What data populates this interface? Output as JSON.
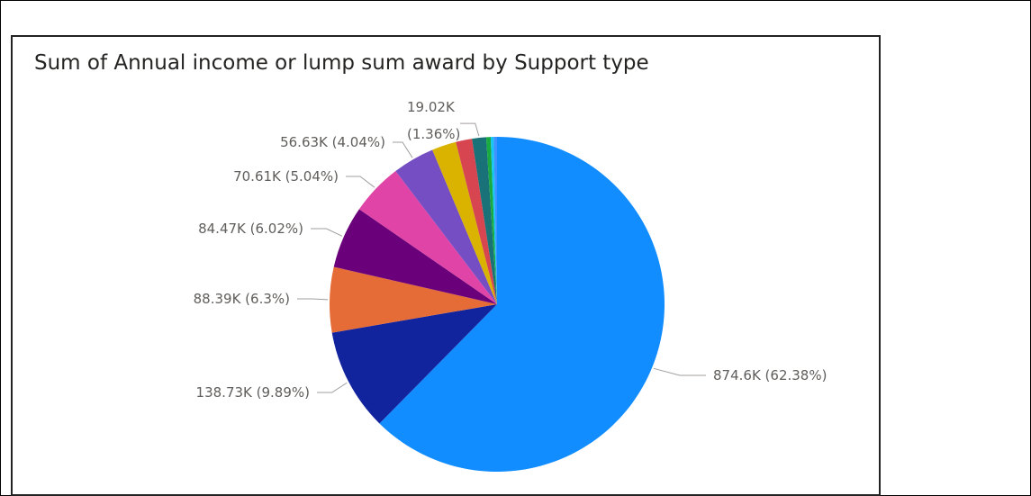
{
  "chart_data": {
    "type": "pie",
    "title": "Sum of Annual income or lump sum award by Support type",
    "legend": "none",
    "slices": [
      {
        "value": 874.6,
        "percent": 62.38,
        "label": "874.6K (62.38%)",
        "color": "#118DFF"
      },
      {
        "value": 138.73,
        "percent": 9.89,
        "label": "138.73K (9.89%)",
        "color": "#12239E"
      },
      {
        "value": 88.39,
        "percent": 6.3,
        "label": "88.39K (6.3%)",
        "color": "#E66C37"
      },
      {
        "value": 84.47,
        "percent": 6.02,
        "label": "84.47K (6.02%)",
        "color": "#6B007B"
      },
      {
        "value": 70.61,
        "percent": 5.04,
        "label": "70.61K (5.04%)",
        "color": "#E044A7"
      },
      {
        "value": 56.63,
        "percent": 4.04,
        "label": "56.63K (4.04%)",
        "color": "#744EC2"
      },
      {
        "value": 33.0,
        "percent": 2.35,
        "label": "",
        "color": "#D9B300"
      },
      {
        "value": 22.0,
        "percent": 1.57,
        "label": "",
        "color": "#D64550"
      },
      {
        "value": 19.02,
        "percent": 1.36,
        "label": "19.02K (1.36%)",
        "color": "#197278"
      },
      {
        "value": 6.0,
        "percent": 0.43,
        "label": "",
        "color": "#1AAB40"
      },
      {
        "value": 4.0,
        "percent": 0.29,
        "label": "",
        "color": "#15C6F4"
      },
      {
        "value": 4.5,
        "percent": 0.32,
        "label": "",
        "color": "#4092FF"
      }
    ]
  }
}
